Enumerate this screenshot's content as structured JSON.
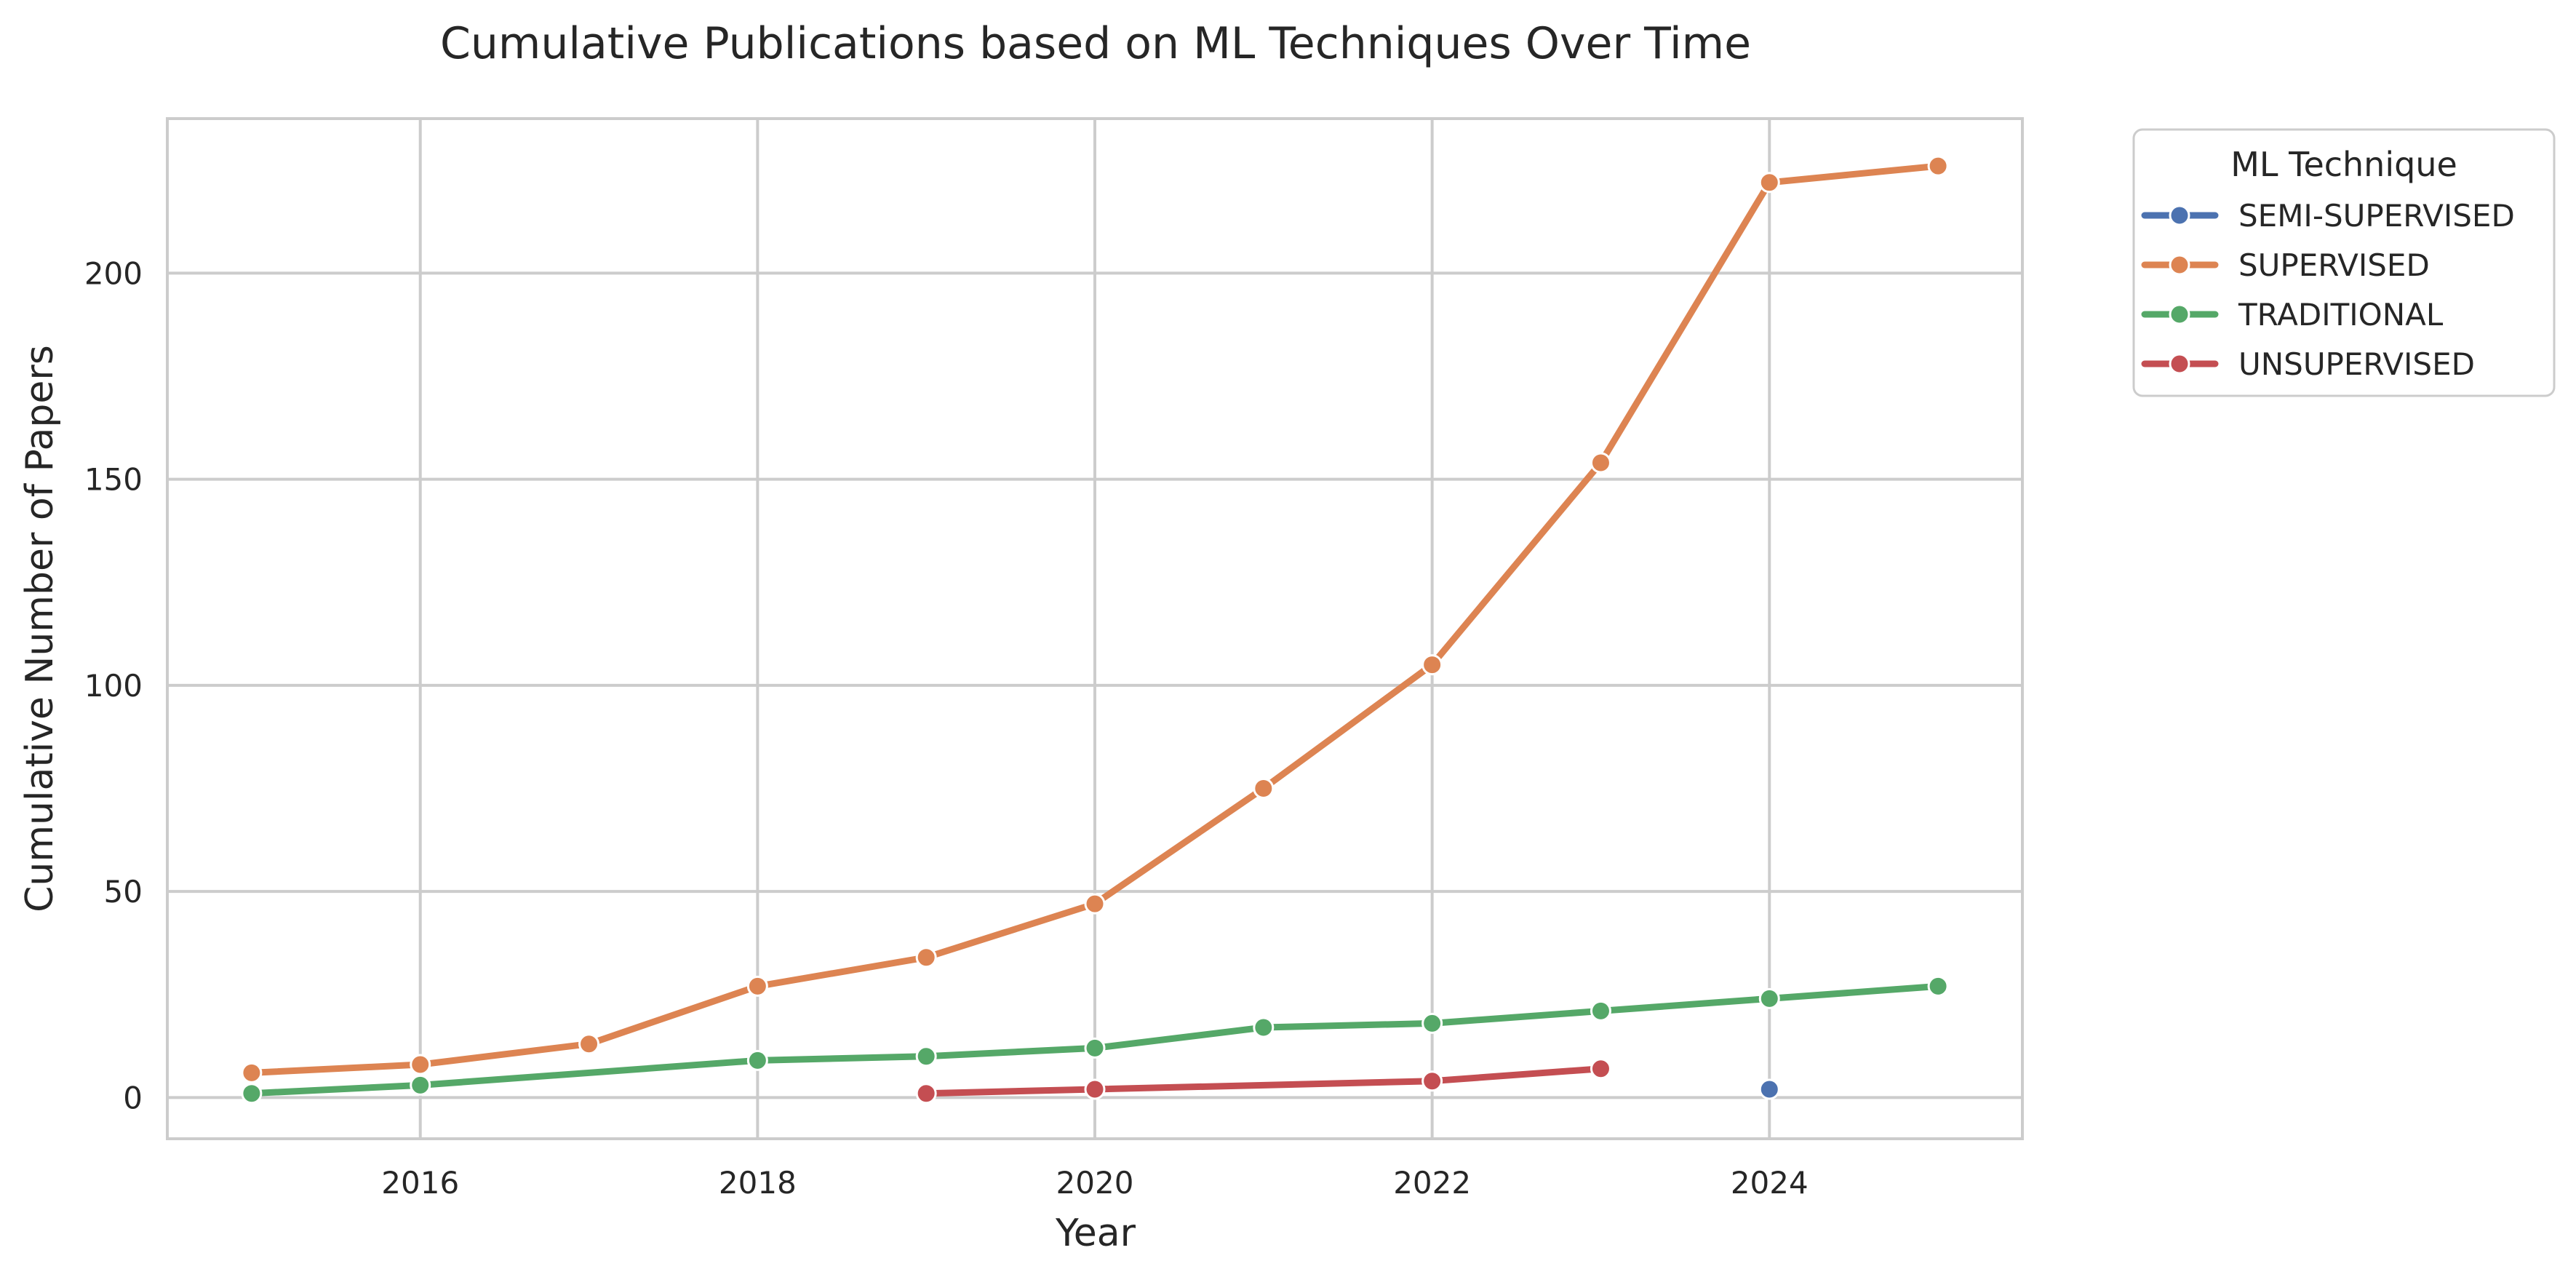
{
  "chart_data": {
    "type": "line",
    "title": "Cumulative Publications based on ML Techniques Over Time",
    "xlabel": "Year",
    "ylabel": "Cumulative Number of Papers",
    "xlim": [
      2014.5,
      2025.5
    ],
    "ylim": [
      -10,
      237.5
    ],
    "x_ticks": [
      2016,
      2018,
      2020,
      2022,
      2024
    ],
    "y_ticks": [
      0,
      50,
      100,
      150,
      200
    ],
    "grid": true,
    "legend": {
      "title": "ML Technique",
      "placement": "outside-top-right"
    },
    "series": [
      {
        "name": "SEMI-SUPERVISED",
        "color": "#4c72b0",
        "points": [
          [
            2024,
            2
          ]
        ]
      },
      {
        "name": "SUPERVISED",
        "color": "#dd8452",
        "points": [
          [
            2015,
            6
          ],
          [
            2016,
            8
          ],
          [
            2017,
            13
          ],
          [
            2018,
            27
          ],
          [
            2019,
            34
          ],
          [
            2020,
            47
          ],
          [
            2021,
            75
          ],
          [
            2022,
            105
          ],
          [
            2023,
            154
          ],
          [
            2024,
            222
          ],
          [
            2025,
            226
          ]
        ]
      },
      {
        "name": "TRADITIONAL",
        "color": "#55a868",
        "points": [
          [
            2015,
            1
          ],
          [
            2016,
            3
          ],
          [
            2018,
            9
          ],
          [
            2019,
            10
          ],
          [
            2020,
            12
          ],
          [
            2021,
            17
          ],
          [
            2022,
            18
          ],
          [
            2023,
            21
          ],
          [
            2024,
            24
          ],
          [
            2025,
            27
          ]
        ]
      },
      {
        "name": "UNSUPERVISED",
        "color": "#c44e52",
        "points": [
          [
            2019,
            1
          ],
          [
            2020,
            2
          ],
          [
            2022,
            4
          ],
          [
            2023,
            7
          ]
        ]
      }
    ]
  }
}
